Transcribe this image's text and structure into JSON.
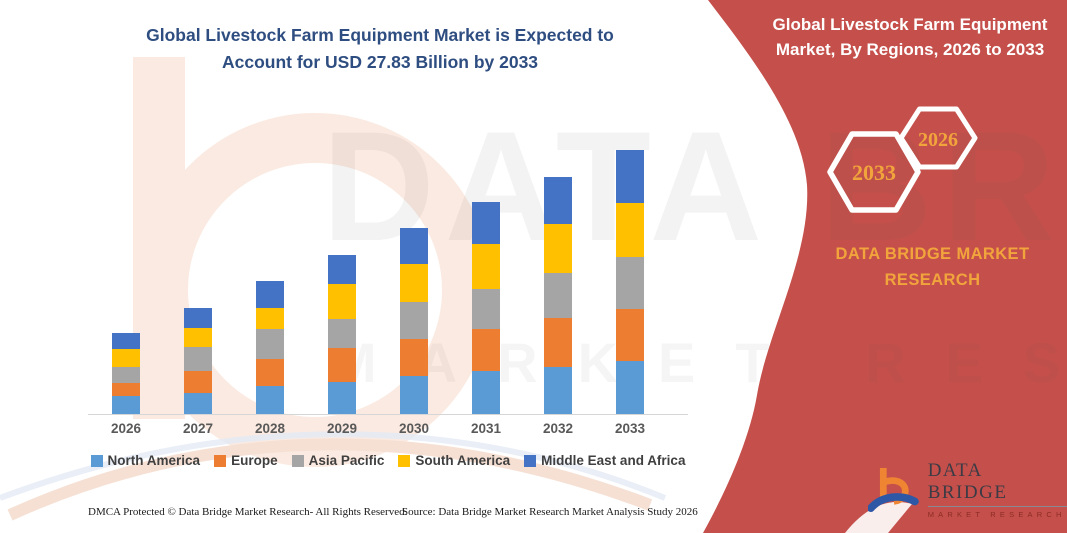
{
  "colors": {
    "panel_red": "#c5504b",
    "accent_orange": "#f2a43c",
    "title_blue": "#2e4d80",
    "axis_gray": "#d6d6d6"
  },
  "left_title": "Global Livestock Farm Equipment Market is Expected to Account for USD 27.83 Billion by 2033",
  "panel": {
    "title": "Global Livestock Farm Equipment Market, By Regions, 2026 to 2033",
    "hexagons": [
      {
        "label": "2033"
      },
      {
        "label": "2026"
      }
    ],
    "brand_text": "DATA BRIDGE MARKET RESEARCH",
    "logo": {
      "title": "DATA BRIDGE",
      "subtitle": "MARKET RESEARCH"
    }
  },
  "watermark": {
    "line1": "DATA BRIDGE",
    "line2": "MARKET RESEARCH"
  },
  "footer": {
    "dmca": "DMCA Protected © Data Bridge Market Research-  All Rights Reserved.",
    "source": "Source: Data Bridge Market Research  Market Analysis Study 2026"
  },
  "chart_data": {
    "type": "bar",
    "stacked": true,
    "title": "Global Livestock Farm Equipment Market is Expected to Account for USD 27.83 Billion by 2033",
    "unit": "USD Billion",
    "categories": [
      "2026",
      "2027",
      "2028",
      "2029",
      "2030",
      "2031",
      "2032",
      "2033"
    ],
    "series": [
      {
        "name": "North America",
        "color": "#5b9bd5",
        "values": [
          1.9,
          2.2,
          2.9,
          3.4,
          4.0,
          4.5,
          5.0,
          5.6
        ]
      },
      {
        "name": "Europe",
        "color": "#ed7d31",
        "values": [
          1.4,
          2.3,
          2.9,
          3.5,
          3.9,
          4.4,
          5.1,
          5.5
        ]
      },
      {
        "name": "Asia Pacific",
        "color": "#a5a5a5",
        "values": [
          1.7,
          2.6,
          3.1,
          3.1,
          3.9,
          4.3,
          4.8,
          5.4
        ]
      },
      {
        "name": "South America",
        "color": "#ffc000",
        "values": [
          1.8,
          2.0,
          2.3,
          3.7,
          4.0,
          4.7,
          5.1,
          5.7
        ]
      },
      {
        "name": "Middle East and Africa",
        "color": "#4472c4",
        "values": [
          1.7,
          2.1,
          2.8,
          3.0,
          3.8,
          4.4,
          5.0,
          5.6
        ]
      }
    ],
    "totals": [
      8.5,
      11.2,
      14.0,
      16.7,
      19.6,
      22.3,
      25.0,
      27.8
    ],
    "highlight": {
      "year": "2033",
      "value": 27.83
    },
    "ylim": [
      0,
      28
    ],
    "y_axis_visible": false,
    "grid": false,
    "legend_position": "bottom",
    "xlabel": "",
    "ylabel": ""
  }
}
